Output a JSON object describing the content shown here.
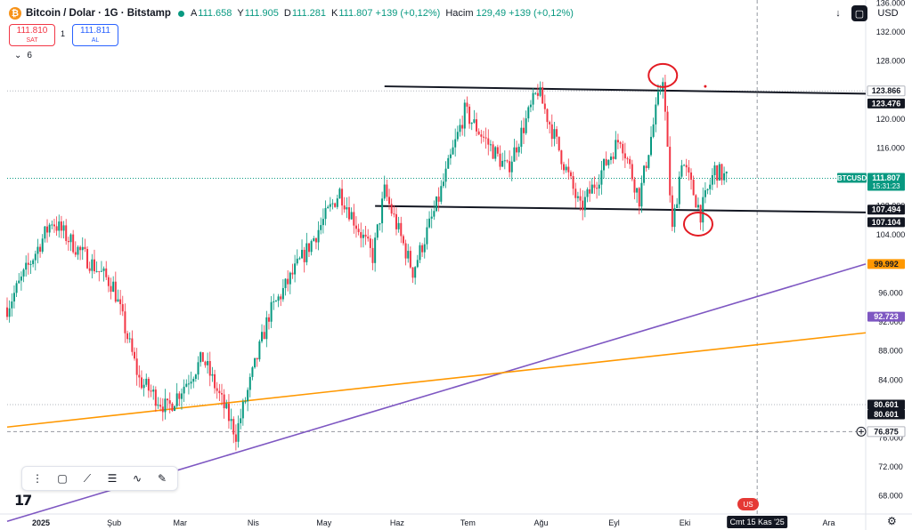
{
  "header": {
    "title": "Bitcoin / Dolar · 1G · Bitstamp",
    "logo_glyph": "₿",
    "ohlc": [
      {
        "k": "A",
        "v": "111.658"
      },
      {
        "k": "Y",
        "v": "111.905"
      },
      {
        "k": "D",
        "v": "111.281"
      },
      {
        "k": "K",
        "v": "111.807 +139 (+0,12%)"
      }
    ],
    "volume_label": "Hacim",
    "volume_value": "129,49 +139 (+0,12%)"
  },
  "trade": {
    "sell_price": "111.810",
    "sell_label": "SAT",
    "spread": "1",
    "buy_price": "111.811",
    "buy_label": "AL"
  },
  "indicator_toggle": {
    "icon": "chevron-down-icon",
    "glyph": "⌄",
    "count": "6"
  },
  "top_right": {
    "arrow_glyph": "↓",
    "currency": "USD"
  },
  "price_axis": {
    "ticks": [
      "136.000",
      "132.000",
      "128.000",
      "124.000",
      "120.000",
      "116.000",
      "112.000",
      "108.000",
      "104.000",
      "100.000",
      "96.000",
      "92.000",
      "88.000",
      "84.000",
      "80.000",
      "76.000",
      "72.000",
      "68.000"
    ],
    "labels": [
      {
        "text": "123.866",
        "y": 123866,
        "bg": "#ffffff",
        "fg": "#131722"
      },
      {
        "text": "123.476",
        "y": 123476,
        "bg": "#131722",
        "fg": "#ffffff"
      },
      {
        "text": "111.807",
        "y": 111807,
        "bg": "#089981",
        "fg": "#ffffff",
        "sub": "15:31:23",
        "tag": "BTCUSD"
      },
      {
        "text": "107.494",
        "y": 107494,
        "bg": "#131722",
        "fg": "#ffffff"
      },
      {
        "text": "107.104",
        "y": 107104,
        "bg": "#131722",
        "fg": "#ffffff"
      },
      {
        "text": "99.992",
        "y": 99992,
        "bg": "#ff9800",
        "fg": "#131722"
      },
      {
        "text": "92.723",
        "y": 92723,
        "bg": "#7e57c2",
        "fg": "#ffffff"
      },
      {
        "text": "80.601",
        "y": 80601,
        "bg": "#131722",
        "fg": "#ffffff"
      },
      {
        "text": "80.601",
        "y": 80601,
        "bg": "#131722",
        "fg": "#ffffff"
      },
      {
        "text": "76.875",
        "y": 76875,
        "bg": "#ffffff",
        "fg": "#131722"
      }
    ]
  },
  "time_axis": {
    "ticks": [
      "2025",
      "Şub",
      "Mar",
      "Nis",
      "May",
      "Haz",
      "Tem",
      "Ağu",
      "Eyl",
      "Eki",
      "Kas",
      "Ara"
    ],
    "crosshair_label": "Cmt 15 Kas '25"
  },
  "toolbar_icons": [
    {
      "name": "drag-handle-icon",
      "glyph": "⋮"
    },
    {
      "name": "rectangle-icon",
      "glyph": "▢"
    },
    {
      "name": "trend-line-icon",
      "glyph": "⟋"
    },
    {
      "name": "fib-lines-icon",
      "glyph": "☰"
    },
    {
      "name": "path-icon",
      "glyph": "∿"
    },
    {
      "name": "brush-icon",
      "glyph": "✎"
    }
  ],
  "footer": {
    "tv_logo": "17",
    "gear_glyph": "⚙",
    "flag_glyph": "US"
  },
  "colors": {
    "up": "#089981",
    "down": "#f23645",
    "orange": "#ff9800",
    "purple": "#7e57c2",
    "annotation": "#e31b23"
  },
  "chart_data": {
    "type": "candlestick",
    "symbol": "BTCUSD",
    "ylim": [
      66000,
      138000
    ],
    "xlim": [
      "2025-01-01",
      "2025-12-31"
    ],
    "grid": false,
    "horizontal_lines": [
      123866,
      111807,
      80601,
      76875
    ],
    "trendlines": [
      {
        "color": "#131722",
        "points": [
          [
            "2025-06-10",
            124500
          ],
          [
            "2025-12-31",
            123476
          ]
        ]
      },
      {
        "color": "#131722",
        "points": [
          [
            "2025-06-06",
            108000
          ],
          [
            "2025-12-31",
            107104
          ]
        ]
      },
      {
        "color": "#7e57c2",
        "points": [
          [
            "2025-01-01",
            64500
          ],
          [
            "2025-12-31",
            99992
          ]
        ]
      },
      {
        "color": "#ff9800",
        "points": [
          [
            "2025-01-01",
            77500
          ],
          [
            "2025-12-31",
            90500
          ]
        ]
      }
    ],
    "annotations": [
      {
        "type": "circle",
        "x": "2025-10-06",
        "y": 126000,
        "color": "#e31b23"
      },
      {
        "type": "circle",
        "x": "2025-10-21",
        "y": 105500,
        "color": "#e31b23"
      },
      {
        "type": "dot",
        "x": "2025-10-24",
        "y": 124500,
        "color": "#e31b23"
      }
    ],
    "crosshair_x": "2025-11-15",
    "crosshair_y": 76875,
    "key_points": [
      [
        "2025-01-01",
        94000
      ],
      [
        "2025-01-20",
        106000
      ],
      [
        "2025-01-31",
        102000
      ],
      [
        "2025-02-15",
        97000
      ],
      [
        "2025-02-26",
        84000
      ],
      [
        "2025-03-10",
        80000
      ],
      [
        "2025-03-25",
        87000
      ],
      [
        "2025-04-08",
        76500
      ],
      [
        "2025-04-22",
        93000
      ],
      [
        "2025-05-10",
        103000
      ],
      [
        "2025-05-22",
        110000
      ],
      [
        "2025-06-05",
        101000
      ],
      [
        "2025-06-10",
        110000
      ],
      [
        "2025-06-22",
        99000
      ],
      [
        "2025-07-02",
        108000
      ],
      [
        "2025-07-14",
        121000
      ],
      [
        "2025-08-01",
        113000
      ],
      [
        "2025-08-14",
        124000
      ],
      [
        "2025-09-01",
        107500
      ],
      [
        "2025-09-18",
        117500
      ],
      [
        "2025-09-26",
        109000
      ],
      [
        "2025-10-06",
        126000
      ],
      [
        "2025-10-10",
        104500
      ],
      [
        "2025-10-14",
        114500
      ],
      [
        "2025-10-22",
        107000
      ],
      [
        "2025-10-28",
        113000
      ],
      [
        "2025-11-02",
        111807
      ]
    ]
  }
}
